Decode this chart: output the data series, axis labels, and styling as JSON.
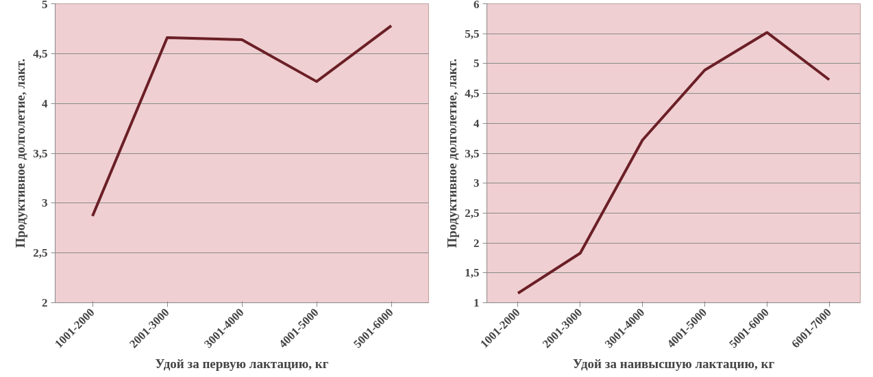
{
  "chart_data": [
    {
      "type": "line",
      "xlabel": "Удой за первую лактацию, кг",
      "ylabel": "Продуктивное долголетие, лакт.",
      "categories": [
        "1001-2000",
        "2001-3000",
        "3001-4000",
        "4001-5000",
        "5001-6000"
      ],
      "series": [
        {
          "color": "#6b1f26",
          "values": [
            2.87,
            4.66,
            4.64,
            4.22,
            4.78
          ]
        }
      ],
      "ylim": [
        2,
        5
      ],
      "yticks": [
        2,
        {
          "value": 2.5,
          "label": "2,5"
        },
        3,
        {
          "value": 3.5,
          "label": "3,5"
        },
        4,
        {
          "value": 4.5,
          "label": "4,5"
        },
        5
      ],
      "grid": "y",
      "line_style": "solid",
      "marker": "none"
    },
    {
      "type": "line",
      "xlabel": "Удой за наивысшую лактацию, кг",
      "ylabel": "Продуктивное долголетие, лакт.",
      "categories": [
        "1001-2000",
        "2001-3000",
        "3001-4000",
        "4001-5000",
        "5001-6000",
        "6001-7000"
      ],
      "series": [
        {
          "color": "#6b1f26",
          "values": [
            1.16,
            1.83,
            3.72,
            4.89,
            5.52,
            4.73
          ]
        }
      ],
      "ylim": [
        1,
        6
      ],
      "yticks": [
        1,
        {
          "value": 1.5,
          "label": "1,5"
        },
        2,
        {
          "value": 2.5,
          "label": "2,5"
        },
        3,
        {
          "value": 3.5,
          "label": "3,5"
        },
        4,
        {
          "value": 4.5,
          "label": "4,5"
        },
        5,
        {
          "value": 5.5,
          "label": "5,5"
        },
        6
      ],
      "grid": "y",
      "line_style": "solid",
      "marker": "none"
    }
  ]
}
